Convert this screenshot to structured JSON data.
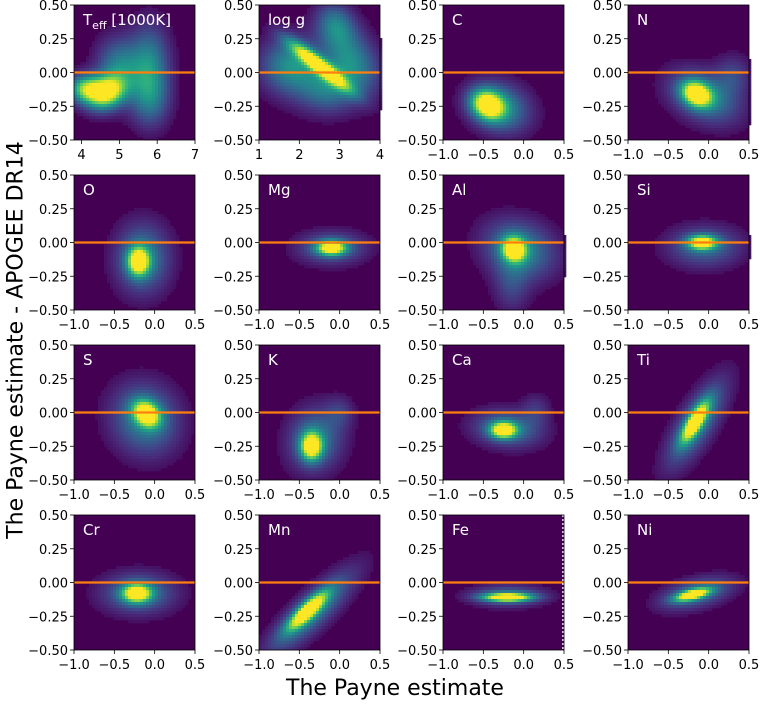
{
  "figure": {
    "xlabel": "The Payne estimate",
    "ylabel": "The Payne estimate - APOGEE DR14"
  },
  "colors": {
    "background": "#440154",
    "zero_line": "#ff7f0e",
    "panel_label": "#ffffff",
    "fe_marker": "#ffffff"
  },
  "chart_data": {
    "type": "heatmap",
    "title": "",
    "xlabel": "The Payne estimate",
    "ylabel": "The Payne estimate - APOGEE DR14",
    "layout": {
      "rows": 4,
      "cols": 4
    },
    "colormap": "viridis",
    "reference_line": {
      "y": 0.0,
      "color": "#ff7f0e"
    },
    "panels": [
      {
        "label": "Teff [1000K]",
        "label_main": "T",
        "label_sub": "eff",
        "label_rest": " [1000K]",
        "xlim": [
          3.8,
          7.0
        ],
        "xticks": [
          4,
          5,
          6,
          7
        ],
        "xtick_labels": [
          "4",
          "5",
          "6",
          "7"
        ],
        "ylim": [
          -0.5,
          0.5
        ],
        "yticks": [
          -0.5,
          -0.25,
          0,
          0.25,
          0.5
        ],
        "ytick_labels": [
          "−0.50",
          "−0.25",
          "0.00",
          "0.25",
          "0.50"
        ],
        "density_peaks": [
          {
            "x": 4.65,
            "y": -0.15,
            "sx": 0.35,
            "sy": 0.08,
            "w": 1.0,
            "rot": -20
          },
          {
            "x": 4.1,
            "y": -0.12,
            "sx": 0.3,
            "sy": 0.07,
            "w": 0.75,
            "rot": 0
          },
          {
            "x": 5.0,
            "y": 0.03,
            "sx": 0.4,
            "sy": 0.15,
            "w": 0.45,
            "rot": 0
          },
          {
            "x": 5.8,
            "y": 0.05,
            "sx": 0.35,
            "sy": 0.2,
            "w": 0.45,
            "rot": 0
          },
          {
            "x": 5.8,
            "y": -0.2,
            "sx": 0.35,
            "sy": 0.14,
            "w": 0.3,
            "rot": 0
          }
        ]
      },
      {
        "label": "log g",
        "xlim": [
          1.0,
          4.0
        ],
        "xticks": [
          1,
          2,
          3,
          4
        ],
        "xtick_labels": [
          "1",
          "2",
          "3",
          "4"
        ],
        "ylim": [
          -0.5,
          0.5
        ],
        "yticks": [
          -0.5,
          -0.25,
          0,
          0.25,
          0.5
        ],
        "ytick_labels": [
          "−0.50",
          "−0.25",
          "0.00",
          "0.25",
          "0.50"
        ],
        "density_peaks": [
          {
            "x": 2.5,
            "y": 0.05,
            "sx": 0.12,
            "sy": 0.2,
            "w": 1.0,
            "rot": -55
          },
          {
            "x": 1.8,
            "y": 0.05,
            "sx": 0.5,
            "sy": 0.14,
            "w": 0.5,
            "rot": 0
          },
          {
            "x": 3.3,
            "y": 0.08,
            "sx": 0.4,
            "sy": 0.18,
            "w": 0.45,
            "rot": -40
          },
          {
            "x": 2.7,
            "y": -0.12,
            "sx": 0.5,
            "sy": 0.12,
            "w": 0.4,
            "rot": 0
          },
          {
            "x": 2.9,
            "y": 0.35,
            "sx": 0.3,
            "sy": 0.12,
            "w": 0.4,
            "rot": -40
          }
        ]
      },
      {
        "label": "C",
        "xlim": [
          -1.0,
          0.5
        ],
        "xticks": [
          -1,
          -0.5,
          0,
          0.5
        ],
        "xtick_labels": [
          "−1.0",
          "−0.5",
          "0.0",
          "0.5"
        ],
        "ylim": [
          -0.5,
          0.5
        ],
        "yticks": [
          -0.5,
          -0.25,
          0,
          0.25,
          0.5
        ],
        "ytick_labels": [
          "−0.50",
          "−0.25",
          "0.00",
          "0.25",
          "0.50"
        ],
        "density_peaks": [
          {
            "x": -0.45,
            "y": -0.24,
            "sx": 0.14,
            "sy": 0.07,
            "w": 1.0,
            "rot": 20
          },
          {
            "x": -0.3,
            "y": -0.26,
            "sx": 0.25,
            "sy": 0.12,
            "w": 0.5,
            "rot": 15
          }
        ]
      },
      {
        "label": "N",
        "xlim": [
          -1.0,
          0.5
        ],
        "xticks": [
          -1,
          -0.5,
          0,
          0.5
        ],
        "xtick_labels": [
          "−1.0",
          "−0.5",
          "0.0",
          "0.5"
        ],
        "ylim": [
          -0.5,
          0.5
        ],
        "yticks": [
          -0.5,
          -0.25,
          0,
          0.25,
          0.5
        ],
        "ytick_labels": [
          "−0.50",
          "−0.25",
          "0.00",
          "0.25",
          "0.50"
        ],
        "density_peaks": [
          {
            "x": -0.15,
            "y": -0.16,
            "sx": 0.13,
            "sy": 0.06,
            "w": 1.0,
            "rot": 20
          },
          {
            "x": -0.05,
            "y": -0.18,
            "sx": 0.3,
            "sy": 0.12,
            "w": 0.45,
            "rot": 20
          },
          {
            "x": 0.3,
            "y": -0.02,
            "sx": 0.15,
            "sy": 0.1,
            "w": 0.2,
            "rot": -30
          }
        ]
      },
      {
        "label": "O",
        "xlim": [
          -1.0,
          0.5
        ],
        "xticks": [
          -1,
          -0.5,
          0,
          0.5
        ],
        "xtick_labels": [
          "−1.0",
          "−0.5",
          "0.0",
          "0.5"
        ],
        "ylim": [
          -0.5,
          0.5
        ],
        "yticks": [
          -0.5,
          -0.25,
          0,
          0.25,
          0.5
        ],
        "ytick_labels": [
          "−0.50",
          "−0.25",
          "0.00",
          "0.25",
          "0.50"
        ],
        "density_peaks": [
          {
            "x": -0.2,
            "y": -0.14,
            "sx": 0.09,
            "sy": 0.07,
            "w": 1.0,
            "rot": 0
          },
          {
            "x": -0.15,
            "y": -0.12,
            "sx": 0.22,
            "sy": 0.17,
            "w": 0.45,
            "rot": 0
          }
        ]
      },
      {
        "label": "Mg",
        "xlim": [
          -1.0,
          0.5
        ],
        "xticks": [
          -1,
          -0.5,
          0,
          0.5
        ],
        "xtick_labels": [
          "−1.0",
          "−0.5",
          "0.0",
          "0.5"
        ],
        "ylim": [
          -0.5,
          0.5
        ],
        "yticks": [
          -0.5,
          -0.25,
          0,
          0.25,
          0.5
        ],
        "ytick_labels": [
          "−0.50",
          "−0.25",
          "0.00",
          "0.25",
          "0.50"
        ],
        "density_peaks": [
          {
            "x": -0.1,
            "y": -0.04,
            "sx": 0.12,
            "sy": 0.035,
            "w": 1.0,
            "rot": 0
          },
          {
            "x": -0.1,
            "y": -0.04,
            "sx": 0.28,
            "sy": 0.08,
            "w": 0.35,
            "rot": 0
          }
        ]
      },
      {
        "label": "Al",
        "xlim": [
          -1.0,
          0.5
        ],
        "xticks": [
          -1,
          -0.5,
          0,
          0.5
        ],
        "xtick_labels": [
          "−1.0",
          "−0.5",
          "0.0",
          "0.5"
        ],
        "ylim": [
          -0.5,
          0.5
        ],
        "yticks": [
          -0.5,
          -0.25,
          0,
          0.25,
          0.5
        ],
        "ytick_labels": [
          "−0.50",
          "−0.25",
          "0.00",
          "0.25",
          "0.50"
        ],
        "density_peaks": [
          {
            "x": -0.12,
            "y": -0.05,
            "sx": 0.1,
            "sy": 0.06,
            "w": 1.0,
            "rot": 20
          },
          {
            "x": -0.05,
            "y": -0.05,
            "sx": 0.3,
            "sy": 0.14,
            "w": 0.45,
            "rot": 15
          },
          {
            "x": -0.15,
            "y": -0.3,
            "sx": 0.15,
            "sy": 0.15,
            "w": 0.2,
            "rot": 0
          }
        ]
      },
      {
        "label": "Si",
        "xlim": [
          -1.0,
          0.5
        ],
        "xticks": [
          -1,
          -0.5,
          0,
          0.5
        ],
        "xtick_labels": [
          "−1.0",
          "−0.5",
          "0.0",
          "0.5"
        ],
        "ylim": [
          -0.5,
          0.5
        ],
        "yticks": [
          -0.5,
          -0.25,
          0,
          0.25,
          0.5
        ],
        "ytick_labels": [
          "−0.50",
          "−0.25",
          "0.00",
          "0.25",
          "0.50"
        ],
        "density_peaks": [
          {
            "x": -0.08,
            "y": 0.0,
            "sx": 0.12,
            "sy": 0.035,
            "w": 1.0,
            "rot": 0
          },
          {
            "x": -0.05,
            "y": -0.03,
            "sx": 0.3,
            "sy": 0.1,
            "w": 0.35,
            "rot": 0
          }
        ]
      },
      {
        "label": "S",
        "xlim": [
          -1.0,
          0.5
        ],
        "xticks": [
          -1,
          -0.5,
          0,
          0.5
        ],
        "xtick_labels": [
          "−1.0",
          "−0.5",
          "0.0",
          "0.5"
        ],
        "ylim": [
          -0.5,
          0.5
        ],
        "yticks": [
          -0.5,
          -0.25,
          0,
          0.25,
          0.5
        ],
        "ytick_labels": [
          "−0.50",
          "−0.25",
          "0.00",
          "0.25",
          "0.50"
        ],
        "density_peaks": [
          {
            "x": -0.1,
            "y": -0.01,
            "sx": 0.12,
            "sy": 0.06,
            "w": 1.0,
            "rot": 30
          },
          {
            "x": -0.12,
            "y": -0.05,
            "sx": 0.28,
            "sy": 0.17,
            "w": 0.45,
            "rot": 30
          }
        ]
      },
      {
        "label": "K",
        "xlim": [
          -1.0,
          0.5
        ],
        "xticks": [
          -1,
          -0.5,
          0,
          0.5
        ],
        "xtick_labels": [
          "−1.0",
          "−0.5",
          "0.0",
          "0.5"
        ],
        "ylim": [
          -0.5,
          0.5
        ],
        "yticks": [
          -0.5,
          -0.25,
          0,
          0.25,
          0.5
        ],
        "ytick_labels": [
          "−0.50",
          "−0.25",
          "0.00",
          "0.25",
          "0.50"
        ],
        "density_peaks": [
          {
            "x": -0.35,
            "y": -0.25,
            "sx": 0.09,
            "sy": 0.07,
            "w": 1.0,
            "rot": 0
          },
          {
            "x": -0.3,
            "y": -0.2,
            "sx": 0.22,
            "sy": 0.16,
            "w": 0.4,
            "rot": 30
          },
          {
            "x": 0.0,
            "y": 0.0,
            "sx": 0.12,
            "sy": 0.08,
            "w": 0.15,
            "rot": 0
          }
        ]
      },
      {
        "label": "Ca",
        "xlim": [
          -1.0,
          0.5
        ],
        "xticks": [
          -1,
          -0.5,
          0,
          0.5
        ],
        "xtick_labels": [
          "−1.0",
          "−0.5",
          "0.0",
          "0.5"
        ],
        "ylim": [
          -0.5,
          0.5
        ],
        "yticks": [
          -0.5,
          -0.25,
          0,
          0.25,
          0.5
        ],
        "ytick_labels": [
          "−0.50",
          "−0.25",
          "0.00",
          "0.25",
          "0.50"
        ],
        "density_peaks": [
          {
            "x": -0.25,
            "y": -0.13,
            "sx": 0.11,
            "sy": 0.04,
            "w": 1.0,
            "rot": 0
          },
          {
            "x": -0.2,
            "y": -0.12,
            "sx": 0.28,
            "sy": 0.09,
            "w": 0.4,
            "rot": 5
          },
          {
            "x": 0.15,
            "y": 0.02,
            "sx": 0.12,
            "sy": 0.08,
            "w": 0.15,
            "rot": 0
          }
        ]
      },
      {
        "label": "Ti",
        "xlim": [
          -1.0,
          0.5
        ],
        "xticks": [
          -1,
          -0.5,
          0,
          0.5
        ],
        "xtick_labels": [
          "−1.0",
          "−0.5",
          "0.0",
          "0.5"
        ],
        "ylim": [
          -0.5,
          0.5
        ],
        "yticks": [
          -0.5,
          -0.25,
          0,
          0.25,
          0.5
        ],
        "ytick_labels": [
          "−0.50",
          "−0.25",
          "0.00",
          "0.25",
          "0.50"
        ],
        "density_peaks": [
          {
            "x": -0.17,
            "y": -0.07,
            "sx": 0.06,
            "sy": 0.12,
            "w": 1.0,
            "rot": 35
          },
          {
            "x": -0.15,
            "y": -0.08,
            "sx": 0.14,
            "sy": 0.25,
            "w": 0.45,
            "rot": 35
          }
        ]
      },
      {
        "label": "Cr",
        "xlim": [
          -1.0,
          0.5
        ],
        "xticks": [
          -1,
          -0.5,
          0,
          0.5
        ],
        "xtick_labels": [
          "−1.0",
          "−0.5",
          "0.0",
          "0.5"
        ],
        "ylim": [
          -0.5,
          0.5
        ],
        "yticks": [
          -0.5,
          -0.25,
          0,
          0.25,
          0.5
        ],
        "ytick_labels": [
          "−0.50",
          "−0.25",
          "0.00",
          "0.25",
          "0.50"
        ],
        "density_peaks": [
          {
            "x": -0.22,
            "y": -0.08,
            "sx": 0.12,
            "sy": 0.045,
            "w": 1.0,
            "rot": 0
          },
          {
            "x": -0.2,
            "y": -0.08,
            "sx": 0.3,
            "sy": 0.1,
            "w": 0.4,
            "rot": 0
          }
        ]
      },
      {
        "label": "Mn",
        "xlim": [
          -1.0,
          0.5
        ],
        "xticks": [
          -1,
          -0.5,
          0,
          0.5
        ],
        "xtick_labels": [
          "−1.0",
          "−0.5",
          "0.0",
          "0.5"
        ],
        "ylim": [
          -0.5,
          0.5
        ],
        "yticks": [
          -0.5,
          -0.25,
          0,
          0.25,
          0.5
        ],
        "ytick_labels": [
          "−0.50",
          "−0.25",
          "0.00",
          "0.25",
          "0.50"
        ],
        "density_peaks": [
          {
            "x": -0.4,
            "y": -0.21,
            "sx": 0.06,
            "sy": 0.14,
            "w": 1.0,
            "rot": 50
          },
          {
            "x": -0.35,
            "y": -0.22,
            "sx": 0.13,
            "sy": 0.3,
            "w": 0.45,
            "rot": 50
          }
        ]
      },
      {
        "label": "Fe",
        "xlim": [
          -1.0,
          0.5
        ],
        "xticks": [
          -1,
          -0.5,
          0,
          0.5
        ],
        "xtick_labels": [
          "−1.0",
          "−0.5",
          "0.0",
          "0.5"
        ],
        "ylim": [
          -0.5,
          0.5
        ],
        "yticks": [
          -0.5,
          -0.25,
          0,
          0.25,
          0.5
        ],
        "ytick_labels": [
          "−0.50",
          "−0.25",
          "0.00",
          "0.25",
          "0.50"
        ],
        "vline": {
          "x": 0.5,
          "style": "dotted",
          "color": "#ffffff"
        },
        "density_peaks": [
          {
            "x": -0.2,
            "y": -0.11,
            "sx": 0.2,
            "sy": 0.02,
            "w": 1.0,
            "rot": 0
          },
          {
            "x": -0.2,
            "y": -0.1,
            "sx": 0.3,
            "sy": 0.05,
            "w": 0.4,
            "rot": 0
          }
        ]
      },
      {
        "label": "Ni",
        "xlim": [
          -1.0,
          0.5
        ],
        "xticks": [
          -1,
          -0.5,
          0,
          0.5
        ],
        "xtick_labels": [
          "−1.0",
          "−0.5",
          "0.0",
          "0.5"
        ],
        "ylim": [
          -0.5,
          0.5
        ],
        "yticks": [
          -0.5,
          -0.25,
          0,
          0.25,
          0.5
        ],
        "ytick_labels": [
          "−0.50",
          "−0.25",
          "0.00",
          "0.25",
          "0.50"
        ],
        "density_peaks": [
          {
            "x": -0.2,
            "y": -0.09,
            "sx": 0.15,
            "sy": 0.025,
            "w": 1.0,
            "rot": -12
          },
          {
            "x": -0.15,
            "y": -0.08,
            "sx": 0.3,
            "sy": 0.07,
            "w": 0.4,
            "rot": -12
          }
        ]
      }
    ]
  }
}
